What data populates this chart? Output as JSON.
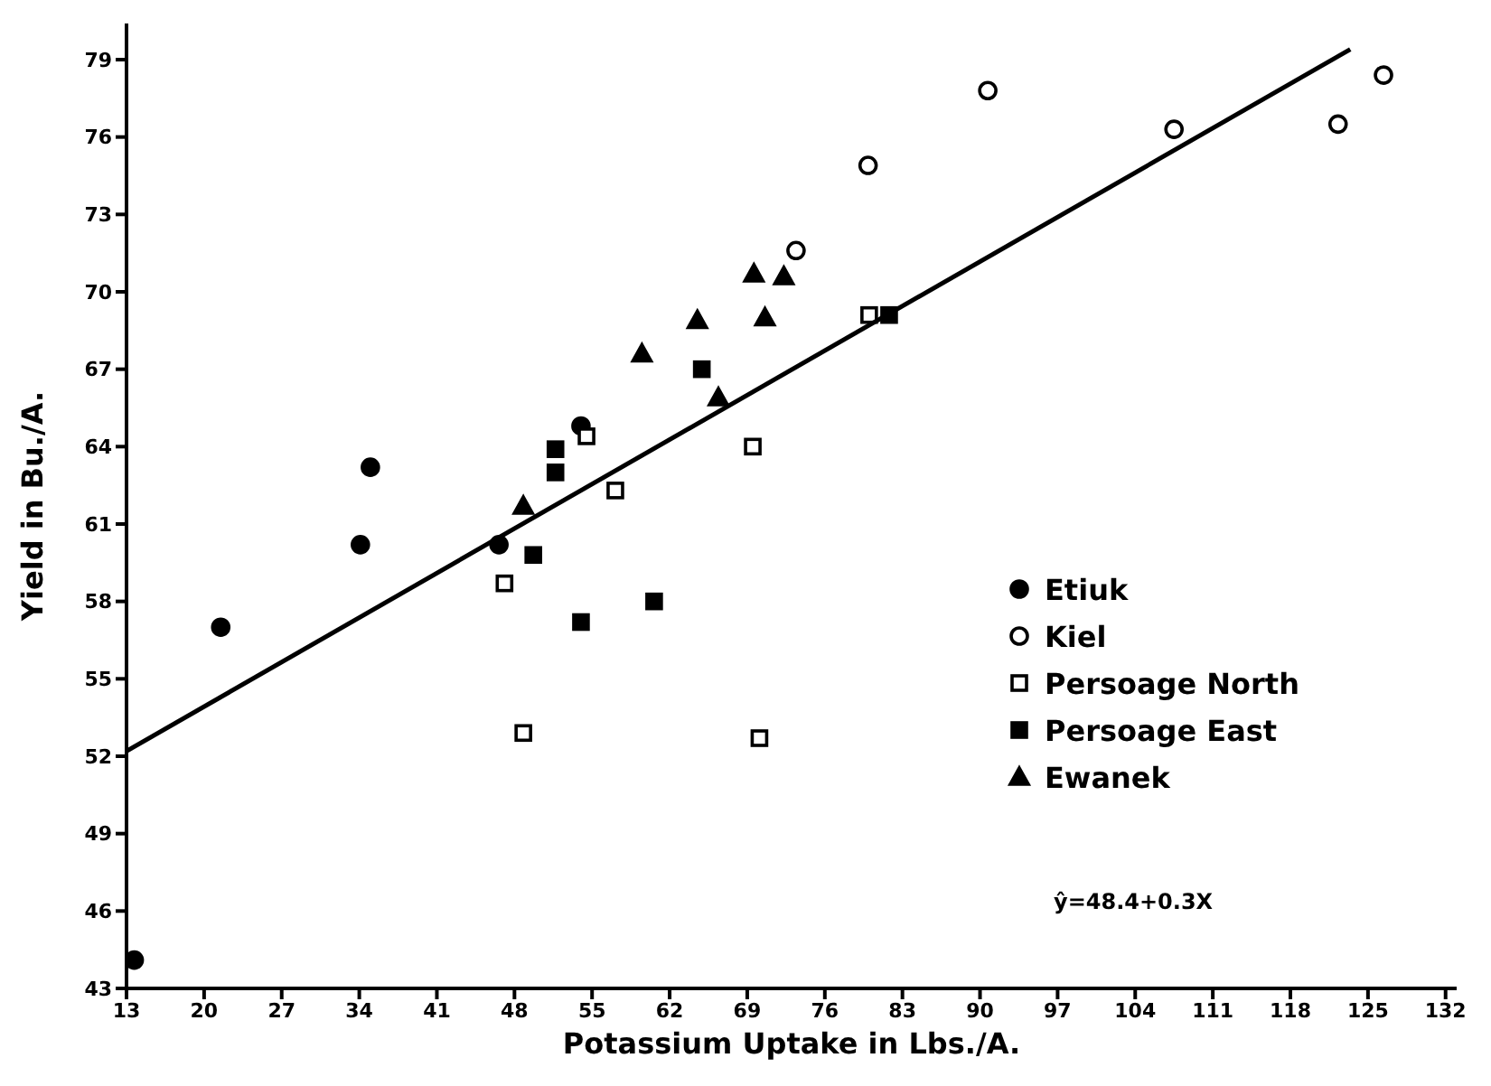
{
  "chart_data": {
    "type": "scatter",
    "xlabel": "Potassium Uptake in Lbs./A.",
    "ylabel": "Yield in Bu./A.",
    "xlim": [
      13,
      133
    ],
    "ylim": [
      43,
      80.4
    ],
    "xticks": [
      13,
      20,
      27,
      34,
      41,
      48,
      55,
      62,
      69,
      76,
      83,
      90,
      97,
      104,
      111,
      118,
      125,
      132
    ],
    "yticks": [
      43,
      46,
      49,
      52,
      55,
      58,
      61,
      64,
      67,
      70,
      73,
      76,
      79
    ],
    "legend": "right",
    "annotations": [
      "ŷ=48.4+0.3X"
    ],
    "series": [
      {
        "name": "Etiuk",
        "color": "#000000",
        "marker": "circle",
        "x": [
          13.7,
          21.5,
          34.1,
          46.6,
          35.0,
          54.0
        ],
        "values": [
          44.1,
          57.0,
          60.2,
          60.2,
          63.2,
          64.8
        ]
      },
      {
        "name": "Kiel",
        "color": "#ffffff",
        "marker": "circle",
        "x": [
          90.7,
          79.9,
          73.4,
          107.5,
          122.3,
          126.4
        ],
        "values": [
          77.8,
          74.9,
          71.6,
          76.3,
          76.5,
          78.4
        ]
      },
      {
        "name": "Persoage North",
        "color": "#ffffff",
        "marker": "square",
        "x": [
          54.5,
          57.1,
          69.5,
          80.0,
          47.1,
          48.8,
          70.1
        ],
        "values": [
          64.4,
          62.3,
          64.0,
          69.1,
          58.7,
          52.9,
          52.7
        ]
      },
      {
        "name": "Persoage East",
        "color": "#000000",
        "marker": "square",
        "x": [
          51.7,
          51.7,
          64.9,
          81.8,
          49.7,
          54.0,
          60.6
        ],
        "values": [
          63.9,
          63.0,
          67.0,
          69.1,
          59.8,
          57.2,
          58.0
        ]
      },
      {
        "name": "Ewanek",
        "color": "#000000",
        "marker": "triangle",
        "x": [
          48.8,
          59.5,
          64.5,
          66.4,
          69.6,
          72.3,
          70.6
        ],
        "values": [
          61.7,
          67.6,
          68.9,
          65.9,
          70.7,
          70.6,
          69.0
        ]
      },
      {
        "type": "line",
        "color": "#000000",
        "marker": "none",
        "x": [
          13,
          123.4
        ],
        "values": [
          52.2,
          79.4
        ]
      }
    ]
  }
}
